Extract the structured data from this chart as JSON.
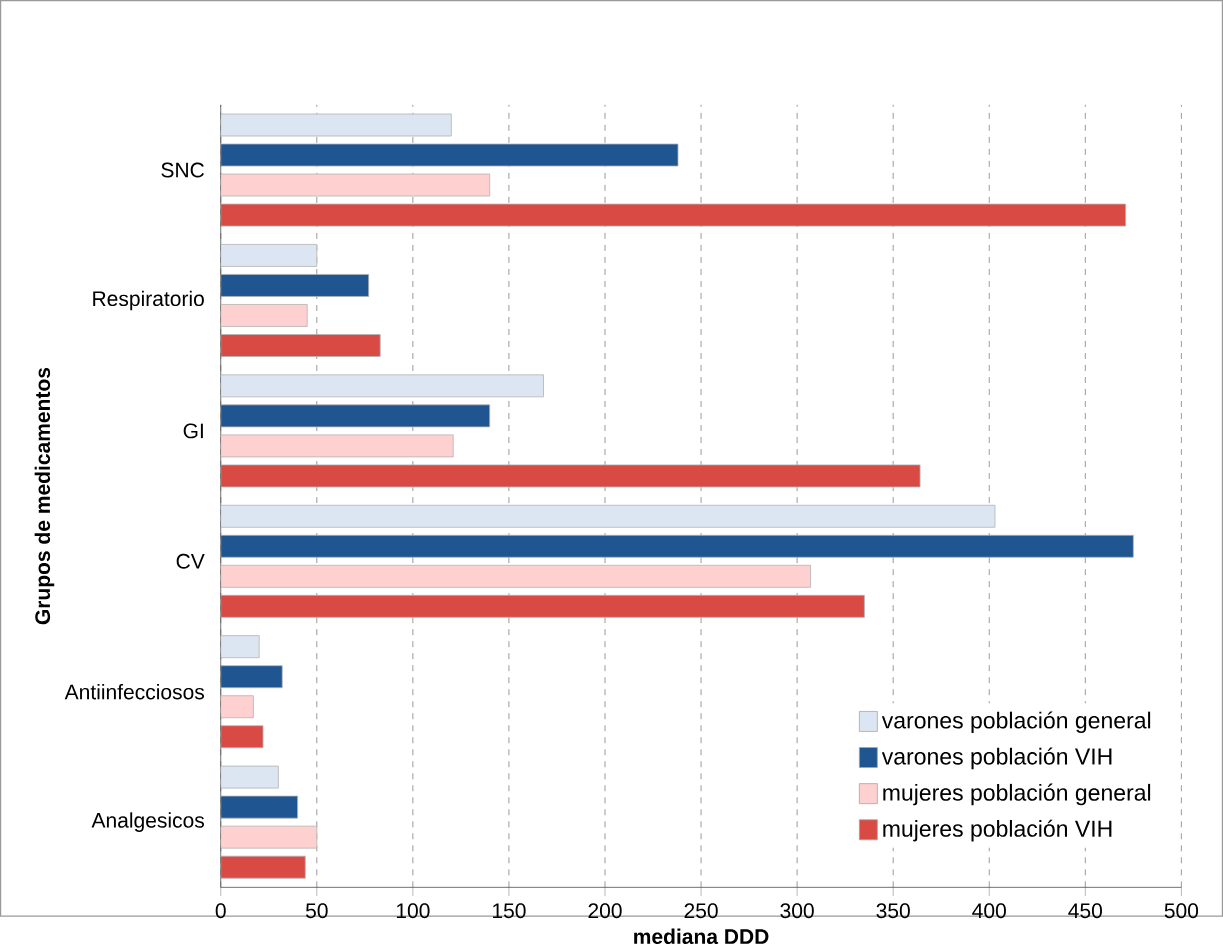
{
  "chart_data": {
    "type": "bar",
    "orientation": "horizontal",
    "xlabel": "mediana DDD",
    "ylabel": "Grupos de medicamentos",
    "categories": [
      "SNC",
      "Respiratorio",
      "GI",
      "CV",
      "Antiinfecciosos",
      "Analgesicos"
    ],
    "series": [
      {
        "name": "varones población general",
        "color": "#dce6f2",
        "values": [
          120,
          50,
          168,
          403,
          20,
          30
        ]
      },
      {
        "name": "varones población VIH",
        "color": "#1f5591",
        "values": [
          238,
          77,
          140,
          475,
          32,
          40
        ]
      },
      {
        "name": "mujeres población general",
        "color": "#ffd0d0",
        "values": [
          140,
          45,
          121,
          307,
          17,
          50
        ]
      },
      {
        "name": "mujeres población VIH",
        "color": "#d94a45",
        "values": [
          471,
          83,
          364,
          335,
          22,
          44
        ]
      }
    ],
    "xlim": [
      0,
      500
    ],
    "xticks": [
      0,
      50,
      100,
      150,
      200,
      250,
      300,
      350,
      400,
      450,
      500
    ],
    "grid": "x",
    "legend": "bottom right"
  }
}
